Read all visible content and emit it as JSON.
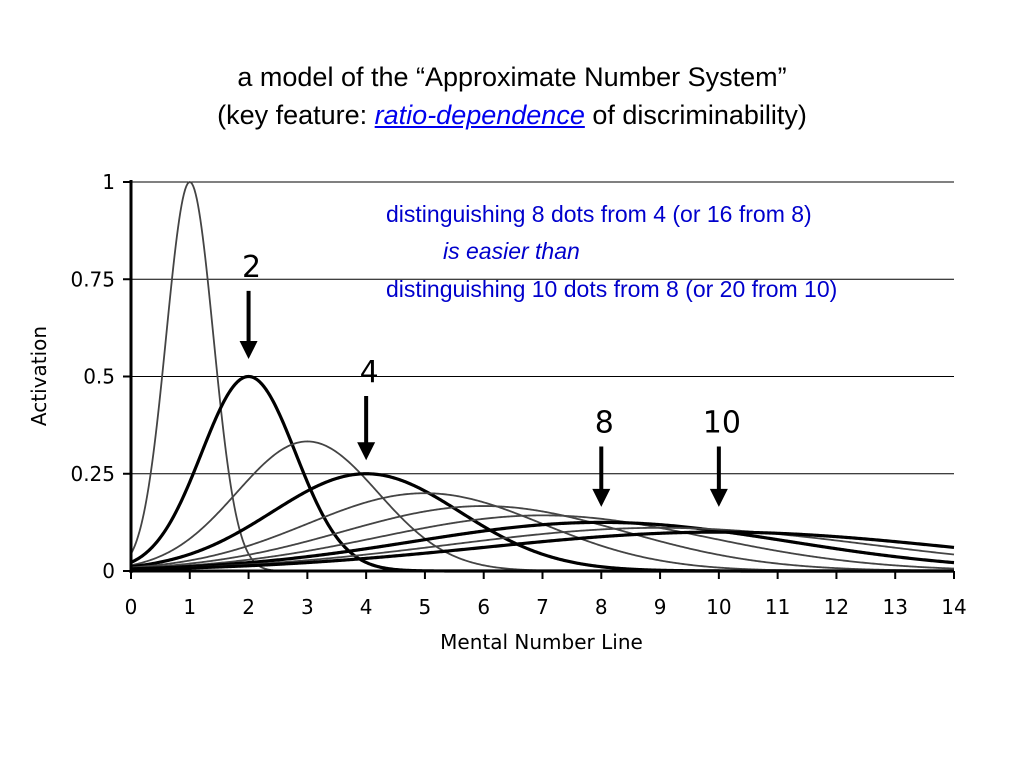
{
  "slide": {
    "title_line1": "a model of the “Approximate Number System”",
    "title_line2_prefix": "(key feature: ",
    "title_line2_link": "ratio-dependence",
    "title_line2_suffix": " of discriminability)",
    "annotation_line1": "distinguishing 8 dots from 4 (or 16 from 8)",
    "annotation_line2": "is easier than",
    "annotation_line3": "distinguishing 10 dots from 8 (or 20 from 10)",
    "colors": {
      "annotation": "#0000cc",
      "link": "#0000ee",
      "curve_highlight": "#000000",
      "curve_normal": "#444444"
    }
  },
  "chart_data": {
    "type": "line",
    "xlabel": "Mental Number Line",
    "ylabel": "Activation",
    "xlim": [
      0,
      14
    ],
    "ylim": [
      0,
      1
    ],
    "x_ticks": [
      "0",
      "1",
      "2",
      "3",
      "4",
      "5",
      "6",
      "7",
      "8",
      "9",
      "10",
      "11",
      "12",
      "13",
      "14"
    ],
    "y_ticks": [
      {
        "value": 0,
        "label": "0"
      },
      {
        "value": 0.25,
        "label": "0.25"
      },
      {
        "value": 0.5,
        "label": "0.5"
      },
      {
        "value": 0.75,
        "label": "0.75"
      },
      {
        "value": 1,
        "label": "1"
      }
    ],
    "grid": "horizontal",
    "series": [
      {
        "peak_at": 1,
        "peak_activation": 1.0,
        "highlight": false
      },
      {
        "peak_at": 2,
        "peak_activation": 0.5,
        "highlight": true
      },
      {
        "peak_at": 3,
        "peak_activation": 0.333,
        "highlight": false
      },
      {
        "peak_at": 4,
        "peak_activation": 0.25,
        "highlight": true
      },
      {
        "peak_at": 5,
        "peak_activation": 0.2,
        "highlight": false
      },
      {
        "peak_at": 6,
        "peak_activation": 0.167,
        "highlight": false
      },
      {
        "peak_at": 7,
        "peak_activation": 0.143,
        "highlight": false
      },
      {
        "peak_at": 8,
        "peak_activation": 0.125,
        "highlight": true
      },
      {
        "peak_at": 9,
        "peak_activation": 0.111,
        "highlight": false
      },
      {
        "peak_at": 10,
        "peak_activation": 0.1,
        "highlight": true
      }
    ],
    "arrows": [
      {
        "label": "2",
        "x": 2,
        "y_top": 0.72,
        "y_tip": 0.55
      },
      {
        "label": "4",
        "x": 4,
        "y_top": 0.45,
        "y_tip": 0.29
      },
      {
        "label": "8",
        "x": 8,
        "y_top": 0.32,
        "y_tip": 0.17
      },
      {
        "label": "10",
        "x": 10,
        "y_top": 0.32,
        "y_tip": 0.17
      }
    ]
  }
}
